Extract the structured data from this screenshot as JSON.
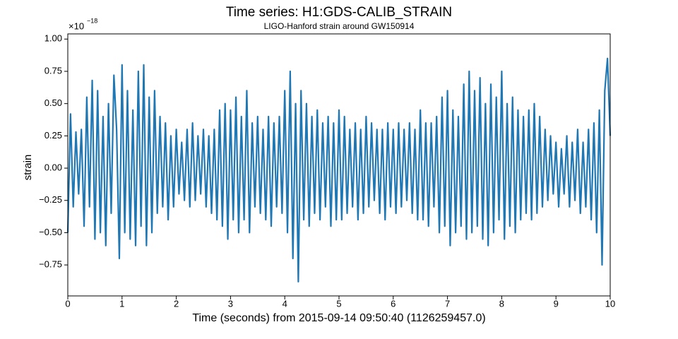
{
  "chart_data": {
    "type": "line",
    "title": "Time series: H1:GDS-CALIB_STRAIN",
    "subtitle": "LIGO-Hanford strain around GW150914",
    "xlabel": "Time (seconds) from 2015-09-14 09:50:40 (1126259457.0)",
    "ylabel": "strain",
    "y_offset": {
      "base": "×10",
      "exponent": "−18"
    },
    "xlim": [
      0,
      10
    ],
    "ylim": [
      -0.99,
      1.04
    ],
    "xticks": [
      0,
      1,
      2,
      3,
      4,
      5,
      6,
      7,
      8,
      9,
      10
    ],
    "yticks": [
      {
        "value": -0.75,
        "label": "−0.75"
      },
      {
        "value": -0.5,
        "label": "−0.50"
      },
      {
        "value": -0.25,
        "label": "−0.25"
      },
      {
        "value": 0,
        "label": "0.00"
      },
      0.25,
      {
        "value": 0.5,
        "label": "0.50"
      },
      0.75,
      {
        "value": 1,
        "label": "1.00"
      }
    ],
    "grid": false,
    "x": [
      0,
      0.05,
      0.1,
      0.15,
      0.2,
      0.25,
      0.3,
      0.35,
      0.4,
      0.45,
      0.5,
      0.55,
      0.6,
      0.65,
      0.7,
      0.75,
      0.8,
      0.85,
      0.9,
      0.95,
      1,
      1.05,
      1.1,
      1.15,
      1.2,
      1.25,
      1.3,
      1.35,
      1.4,
      1.45,
      1.5,
      1.55,
      1.6,
      1.65,
      1.7,
      1.75,
      1.8,
      1.85,
      1.9,
      1.95,
      2,
      2.05,
      2.1,
      2.15,
      2.2,
      2.25,
      2.3,
      2.35,
      2.4,
      2.45,
      2.5,
      2.55,
      2.6,
      2.65,
      2.7,
      2.75,
      2.8,
      2.85,
      2.9,
      2.95,
      3,
      3.05,
      3.1,
      3.15,
      3.2,
      3.25,
      3.3,
      3.35,
      3.4,
      3.45,
      3.5,
      3.55,
      3.6,
      3.65,
      3.7,
      3.75,
      3.8,
      3.85,
      3.9,
      3.95,
      4,
      4.05,
      4.1,
      4.15,
      4.2,
      4.25,
      4.3,
      4.35,
      4.4,
      4.45,
      4.5,
      4.55,
      4.6,
      4.65,
      4.7,
      4.75,
      4.8,
      4.85,
      4.9,
      4.95,
      5,
      5.05,
      5.1,
      5.15,
      5.2,
      5.25,
      5.3,
      5.35,
      5.4,
      5.45,
      5.5,
      5.55,
      5.6,
      5.65,
      5.7,
      5.75,
      5.8,
      5.85,
      5.9,
      5.95,
      6,
      6.05,
      6.1,
      6.15,
      6.2,
      6.25,
      6.3,
      6.35,
      6.4,
      6.45,
      6.5,
      6.55,
      6.6,
      6.65,
      6.7,
      6.75,
      6.8,
      6.85,
      6.9,
      6.95,
      7,
      7.05,
      7.1,
      7.15,
      7.2,
      7.25,
      7.3,
      7.35,
      7.4,
      7.45,
      7.5,
      7.55,
      7.6,
      7.65,
      7.7,
      7.75,
      7.8,
      7.85,
      7.9,
      7.95,
      8,
      8.05,
      8.1,
      8.15,
      8.2,
      8.25,
      8.3,
      8.35,
      8.4,
      8.45,
      8.5,
      8.55,
      8.6,
      8.65,
      8.7,
      8.75,
      8.8,
      8.85,
      8.9,
      8.95,
      9,
      9.05,
      9.1,
      9.15,
      9.2,
      9.25,
      9.3,
      9.35,
      9.4,
      9.45,
      9.5,
      9.55,
      9.6,
      9.65,
      9.7,
      9.75,
      9.8,
      9.85,
      9.9,
      9.95,
      10
    ],
    "series": [
      {
        "color": "#1f77b4",
        "values": [
          -0.5,
          0.42,
          -0.3,
          0.28,
          -0.2,
          0.3,
          -0.45,
          0.55,
          -0.3,
          0.68,
          -0.55,
          0.6,
          -0.5,
          0.4,
          -0.6,
          0.5,
          -0.35,
          0.72,
          0.3,
          -0.7,
          0.8,
          -0.5,
          0.6,
          -0.55,
          0.45,
          -0.6,
          0.75,
          -0.45,
          0.8,
          -0.6,
          0.55,
          -0.5,
          0.6,
          -0.35,
          0.4,
          -0.3,
          0.35,
          -0.4,
          0.25,
          -0.3,
          0.3,
          -0.2,
          0.2,
          -0.25,
          0.3,
          -0.3,
          0.35,
          -0.25,
          0.25,
          -0.2,
          0.3,
          -0.3,
          0.25,
          -0.35,
          0.3,
          -0.4,
          0.45,
          -0.45,
          0.5,
          -0.55,
          0.45,
          -0.4,
          0.55,
          -0.5,
          0.4,
          -0.4,
          0.6,
          -0.5,
          0.35,
          -0.3,
          0.4,
          -0.35,
          0.3,
          -0.4,
          0.4,
          -0.45,
          0.35,
          -0.3,
          0.4,
          -0.35,
          0.6,
          -0.5,
          0.75,
          -0.7,
          0.5,
          -0.88,
          0.6,
          -0.4,
          0.5,
          -0.45,
          0.4,
          -0.35,
          0.45,
          -0.4,
          0.35,
          -0.3,
          0.4,
          -0.45,
          0.35,
          -0.4,
          0.45,
          -0.4,
          0.4,
          -0.35,
          0.3,
          -0.3,
          0.35,
          -0.4,
          0.3,
          -0.35,
          0.4,
          -0.3,
          0.35,
          -0.25,
          0.3,
          -0.35,
          0.3,
          -0.4,
          0.35,
          -0.3,
          0.3,
          -0.35,
          0.35,
          -0.3,
          0.3,
          -0.25,
          0.35,
          -0.35,
          0.3,
          -0.4,
          0.45,
          -0.4,
          0.35,
          -0.45,
          0.35,
          -0.3,
          0.4,
          -0.5,
          0.55,
          -0.45,
          0.6,
          -0.6,
          0.45,
          -0.5,
          0.4,
          -0.45,
          0.65,
          -0.55,
          0.75,
          -0.5,
          0.6,
          -0.45,
          0.7,
          -0.55,
          0.5,
          -0.6,
          0.65,
          -0.5,
          0.55,
          -0.4,
          0.75,
          -0.55,
          0.5,
          -0.45,
          0.55,
          -0.5,
          0.45,
          -0.4,
          0.4,
          -0.35,
          0.45,
          -0.4,
          0.5,
          -0.35,
          0.4,
          -0.3,
          0.3,
          -0.25,
          0.25,
          -0.2,
          0.2,
          -0.3,
          0.15,
          -0.2,
          0.25,
          -0.3,
          0.2,
          -0.25,
          0.3,
          -0.35,
          0.2,
          -0.3,
          0.3,
          -0.4,
          0.35,
          -0.5,
          0.45,
          -0.75,
          0.6,
          0.85,
          0.25
        ]
      }
    ]
  }
}
